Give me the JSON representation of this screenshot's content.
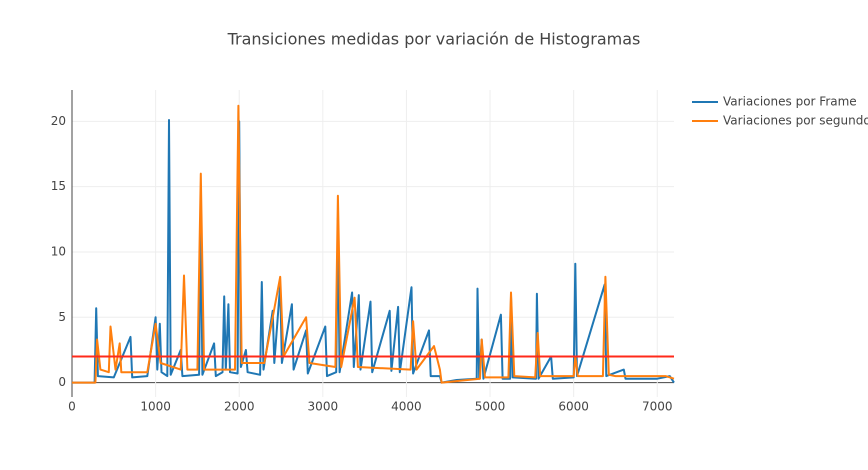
{
  "chart_data": {
    "type": "line",
    "title": "Transiciones medidas por variación de Histogramas",
    "xlim": [
      0,
      7200
    ],
    "xticks": [
      0,
      1000,
      2000,
      3000,
      4000,
      5000,
      6000,
      7000
    ],
    "ylim": [
      -1.1,
      22.4
    ],
    "yticks": [
      0,
      5,
      10,
      15,
      20
    ],
    "grid": true,
    "threshold": {
      "value": 2,
      "color": "#ff2a1a"
    },
    "legend": "top-right",
    "series": [
      {
        "name": "Variaciones por Frame",
        "color": "#1f77b4",
        "x": [
          0,
          270,
          290,
          310,
          500,
          700,
          720,
          900,
          1000,
          1020,
          1050,
          1070,
          1140,
          1160,
          1180,
          1300,
          1320,
          1520,
          1540,
          1560,
          1700,
          1720,
          1800,
          1820,
          1840,
          1870,
          1890,
          1980,
          2000,
          2020,
          2080,
          2100,
          2250,
          2270,
          2290,
          2400,
          2420,
          2490,
          2510,
          2630,
          2650,
          2800,
          2820,
          3030,
          3050,
          3160,
          3180,
          3200,
          3350,
          3370,
          3430,
          3450,
          3570,
          3590,
          3800,
          3820,
          3900,
          3920,
          4060,
          4080,
          4270,
          4290,
          4400,
          4420,
          4600,
          4840,
          4850,
          4870,
          4900,
          4920,
          5130,
          5150,
          5240,
          5250,
          5270,
          5550,
          5560,
          5580,
          5730,
          5750,
          6000,
          6020,
          6040,
          6370,
          6390,
          6600,
          6620,
          7000,
          7150,
          7200
        ],
        "values": [
          0,
          0,
          5.7,
          0.5,
          0.4,
          3.5,
          0.4,
          0.5,
          5,
          1,
          4.5,
          0.8,
          0.5,
          20.1,
          0.6,
          2.5,
          0.5,
          0.6,
          13,
          0.6,
          3,
          0.5,
          0.8,
          6.6,
          1,
          6,
          0.8,
          0.7,
          20,
          1.2,
          2.5,
          0.8,
          0.6,
          7.7,
          1,
          5.5,
          1.5,
          7.5,
          1.5,
          6,
          1,
          4,
          0.7,
          4.3,
          0.5,
          0.8,
          12.6,
          0.8,
          6.9,
          1.2,
          6.7,
          1,
          6.2,
          0.8,
          5.5,
          0.9,
          5.8,
          0.8,
          7.3,
          0.7,
          4,
          0.5,
          0.5,
          0,
          0.2,
          0.3,
          7.2,
          0.3,
          3.3,
          0.3,
          5.2,
          0.3,
          0.3,
          6.6,
          0.4,
          0.3,
          6.8,
          0.3,
          2,
          0.3,
          0.4,
          9.1,
          0.5,
          7.5,
          0.5,
          1,
          0.3,
          0.3,
          0.5,
          0
        ]
      },
      {
        "name": "Variaciones por segundo",
        "color": "#ff7f0e",
        "x": [
          0,
          280,
          300,
          340,
          440,
          460,
          520,
          570,
          590,
          900,
          1000,
          1060,
          1300,
          1340,
          1380,
          1500,
          1540,
          1580,
          1950,
          1990,
          2030,
          2300,
          2490,
          2530,
          2800,
          2840,
          3150,
          3180,
          3220,
          3380,
          3420,
          4050,
          4080,
          4120,
          4330,
          4400,
          4420,
          4880,
          4900,
          4940,
          5220,
          5250,
          5290,
          5540,
          5570,
          5600,
          6000,
          6020,
          6050,
          6350,
          6380,
          6420,
          6500,
          7100,
          7200
        ],
        "values": [
          0,
          0,
          3.3,
          1,
          0.8,
          4.3,
          1,
          3,
          0.8,
          0.8,
          4.5,
          1.5,
          1,
          8.2,
          1,
          1,
          16,
          1,
          1,
          21.2,
          1.5,
          1.5,
          8.1,
          2,
          5,
          1.5,
          1.2,
          14.3,
          1.2,
          6.5,
          1.2,
          1,
          4.7,
          1,
          2.8,
          1,
          0,
          0.3,
          3.3,
          0.4,
          0.4,
          6.9,
          0.5,
          0.4,
          3.8,
          0.5,
          0.5,
          2,
          0.5,
          0.5,
          8.1,
          0.6,
          0.5,
          0.5,
          0.3
        ]
      }
    ]
  }
}
